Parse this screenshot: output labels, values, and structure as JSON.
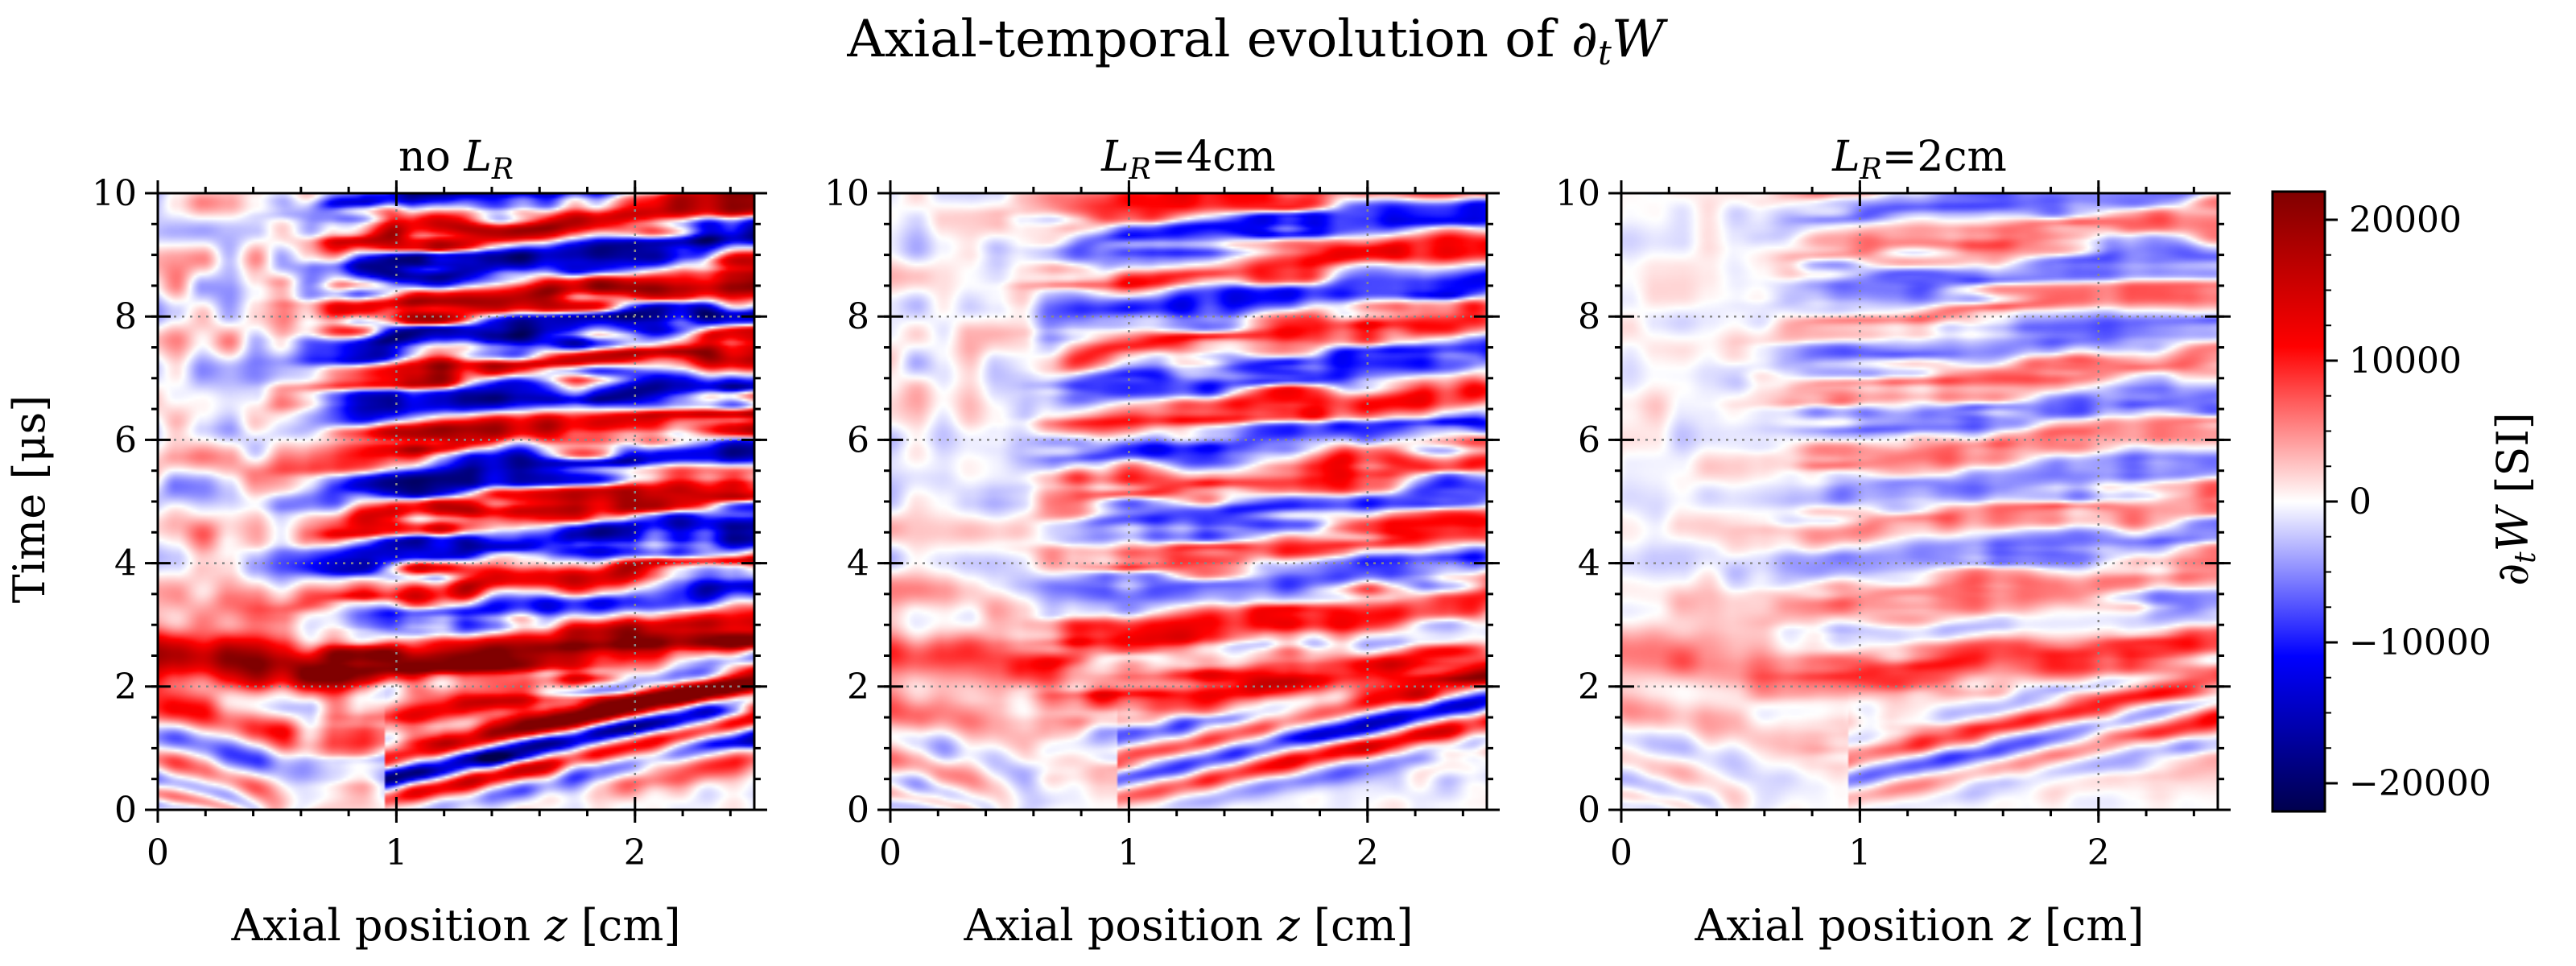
{
  "figure": {
    "title": "Axial-temporal evolution of ∂ₜW",
    "y_label": "Time [μs]",
    "x_label": "Axial position z [cm]",
    "colorbar_label": "∂ₜW  [SI]"
  },
  "chart_data": [
    {
      "type": "heatmap",
      "panel_title": "no L_R",
      "xlabel": "Axial position z [cm]",
      "ylabel": "Time [μs]",
      "xlim": [
        0,
        2.5
      ],
      "ylim": [
        0,
        10
      ],
      "x_ticks": [
        0,
        1,
        2
      ],
      "y_ticks": [
        0,
        2,
        4,
        6,
        8,
        10
      ],
      "grid": true,
      "amplitude": 1.0
    },
    {
      "type": "heatmap",
      "panel_title": "L_R=4cm",
      "xlabel": "Axial position z [cm]",
      "ylabel": "",
      "xlim": [
        0,
        2.5
      ],
      "ylim": [
        0,
        10
      ],
      "x_ticks": [
        0,
        1,
        2
      ],
      "y_ticks": [
        0,
        2,
        4,
        6,
        8,
        10
      ],
      "grid": true,
      "amplitude": 0.6
    },
    {
      "type": "heatmap",
      "panel_title": "L_R=2cm",
      "xlabel": "Axial position z [cm]",
      "ylabel": "",
      "xlim": [
        0,
        2.5
      ],
      "ylim": [
        0,
        10
      ],
      "x_ticks": [
        0,
        1,
        2
      ],
      "y_ticks": [
        0,
        2,
        4,
        6,
        8,
        10
      ],
      "grid": true,
      "amplitude": 0.38
    }
  ],
  "colorbar": {
    "colormap": "seismic",
    "vmin": -22000,
    "vmax": 22000,
    "ticks": [
      20000,
      10000,
      0,
      -10000,
      -20000
    ],
    "tick_labels": [
      "20000",
      "10000",
      "0",
      "−10000",
      "−20000"
    ],
    "colors": {
      "low": "#00004c",
      "mid_low": "#0000ff",
      "zero": "#ffffff",
      "mid_high": "#ff0000",
      "high": "#800000"
    }
  }
}
